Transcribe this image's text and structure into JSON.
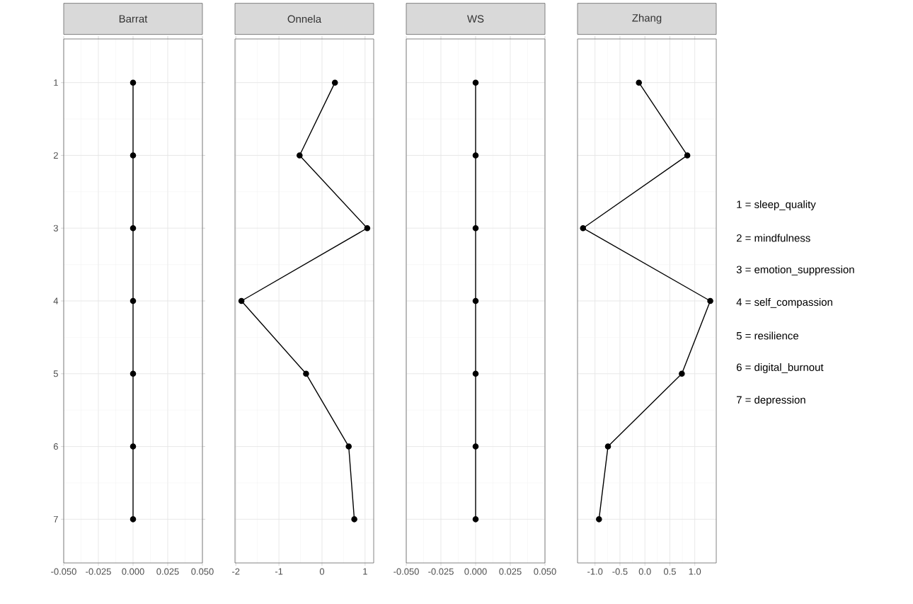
{
  "chart_data": [
    {
      "type": "line",
      "title": "Barrat",
      "grid": true,
      "marker": "circle",
      "xlim": [
        -0.05,
        0.05
      ],
      "ylim": [
        7.6,
        0.4
      ],
      "xticks": [
        {
          "value": -0.05,
          "label": "-0.050"
        },
        {
          "value": -0.025,
          "label": "-0.025"
        },
        {
          "value": 0,
          "label": "0.000"
        },
        {
          "value": 0.025,
          "label": "0.025"
        },
        {
          "value": 0.05,
          "label": "0.050"
        }
      ],
      "yticks": [
        1,
        2,
        3,
        4,
        5,
        6,
        7
      ],
      "series": [
        {
          "color": "#000000",
          "x": [
            0,
            0,
            0,
            0,
            0,
            0,
            0
          ],
          "values": [
            1,
            2,
            3,
            4,
            5,
            6,
            7
          ]
        }
      ]
    },
    {
      "type": "line",
      "title": "Onnela",
      "grid": true,
      "marker": "circle",
      "tick_labels": "x",
      "xlim": [
        -2.02,
        1.2
      ],
      "ylim": [
        7.6,
        0.4
      ],
      "xticks": [
        -2,
        -1,
        0,
        1
      ],
      "yticks": [
        1,
        2,
        3,
        4,
        5,
        6,
        7
      ],
      "series": [
        {
          "color": "#000000",
          "x": [
            0.3,
            -0.52,
            1.05,
            -1.87,
            -0.37,
            0.62,
            0.75
          ],
          "values": [
            1,
            2,
            3,
            4,
            5,
            6,
            7
          ]
        }
      ]
    },
    {
      "type": "line",
      "title": "WS",
      "grid": true,
      "marker": "circle",
      "tick_labels": "x",
      "xlim": [
        -0.05,
        0.05
      ],
      "ylim": [
        7.6,
        0.4
      ],
      "xticks": [
        {
          "value": -0.05,
          "label": "-0.050"
        },
        {
          "value": -0.025,
          "label": "-0.025"
        },
        {
          "value": 0,
          "label": "0.000"
        },
        {
          "value": 0.025,
          "label": "0.025"
        },
        {
          "value": 0.05,
          "label": "0.050"
        }
      ],
      "yticks": [
        1,
        2,
        3,
        4,
        5,
        6,
        7
      ],
      "series": [
        {
          "color": "#000000",
          "x": [
            0,
            0,
            0,
            0,
            0,
            0,
            0
          ],
          "values": [
            1,
            2,
            3,
            4,
            5,
            6,
            7
          ]
        }
      ]
    },
    {
      "type": "line",
      "title": "Zhang",
      "grid": true,
      "marker": "circle",
      "tick_labels": "x",
      "xlim": [
        -1.35,
        1.43
      ],
      "ylim": [
        7.6,
        0.4
      ],
      "xticks": [
        {
          "value": -1,
          "label": "-1.0"
        },
        {
          "value": -0.5,
          "label": "-0.5"
        },
        {
          "value": 0,
          "label": "0.0"
        },
        {
          "value": 0.5,
          "label": "0.5"
        },
        {
          "value": 1,
          "label": "1.0"
        }
      ],
      "yticks": [
        1,
        2,
        3,
        4,
        5,
        6,
        7
      ],
      "series": [
        {
          "color": "#000000",
          "x": [
            -0.12,
            0.85,
            -1.24,
            1.31,
            0.74,
            -0.74,
            -0.92
          ],
          "values": [
            1,
            2,
            3,
            4,
            5,
            6,
            7
          ]
        }
      ]
    },
    {
      "type": "other",
      "annotations": [
        "1 = sleep_quality",
        "2 = mindfulness",
        "3 = emotion_suppression",
        "4 = self_compassion",
        "5 = resilience",
        "6 = digital_burnout",
        "7 = depression"
      ]
    }
  ]
}
